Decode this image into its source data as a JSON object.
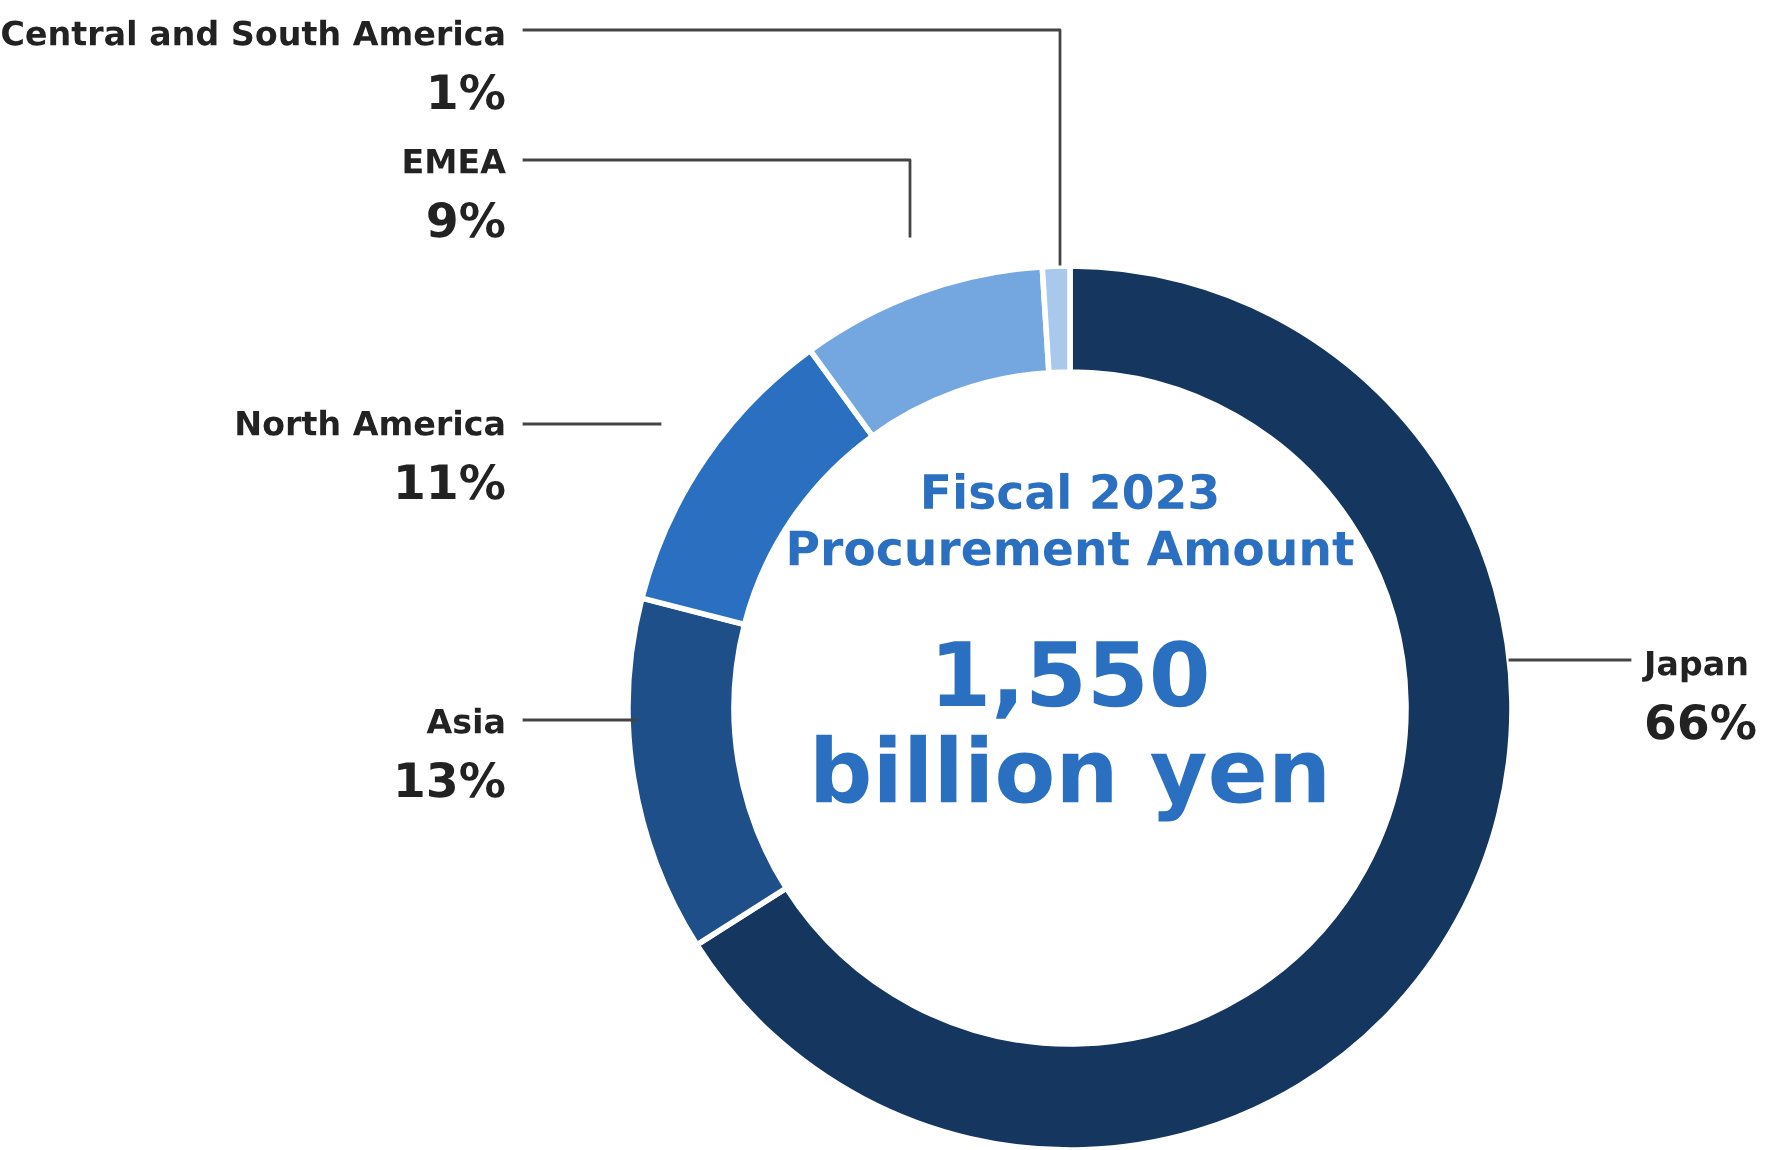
{
  "chart_data": {
    "type": "donut",
    "title": "Fiscal 2023\nProcurement Amount",
    "annotations": [
      "1,550\nbillion yen"
    ],
    "categories": [
      "Japan",
      "Asia",
      "North America",
      "EMEA",
      "Central and South America"
    ],
    "values": [
      66,
      13,
      11,
      9,
      1
    ],
    "value_labels": [
      "66%",
      "13%",
      "11%",
      "9%",
      "1%"
    ],
    "colors": [
      "#15365e",
      "#1f4f89",
      "#2a6fc0",
      "#74a7e0",
      "#a8c8ee"
    ],
    "legend": false
  }
}
